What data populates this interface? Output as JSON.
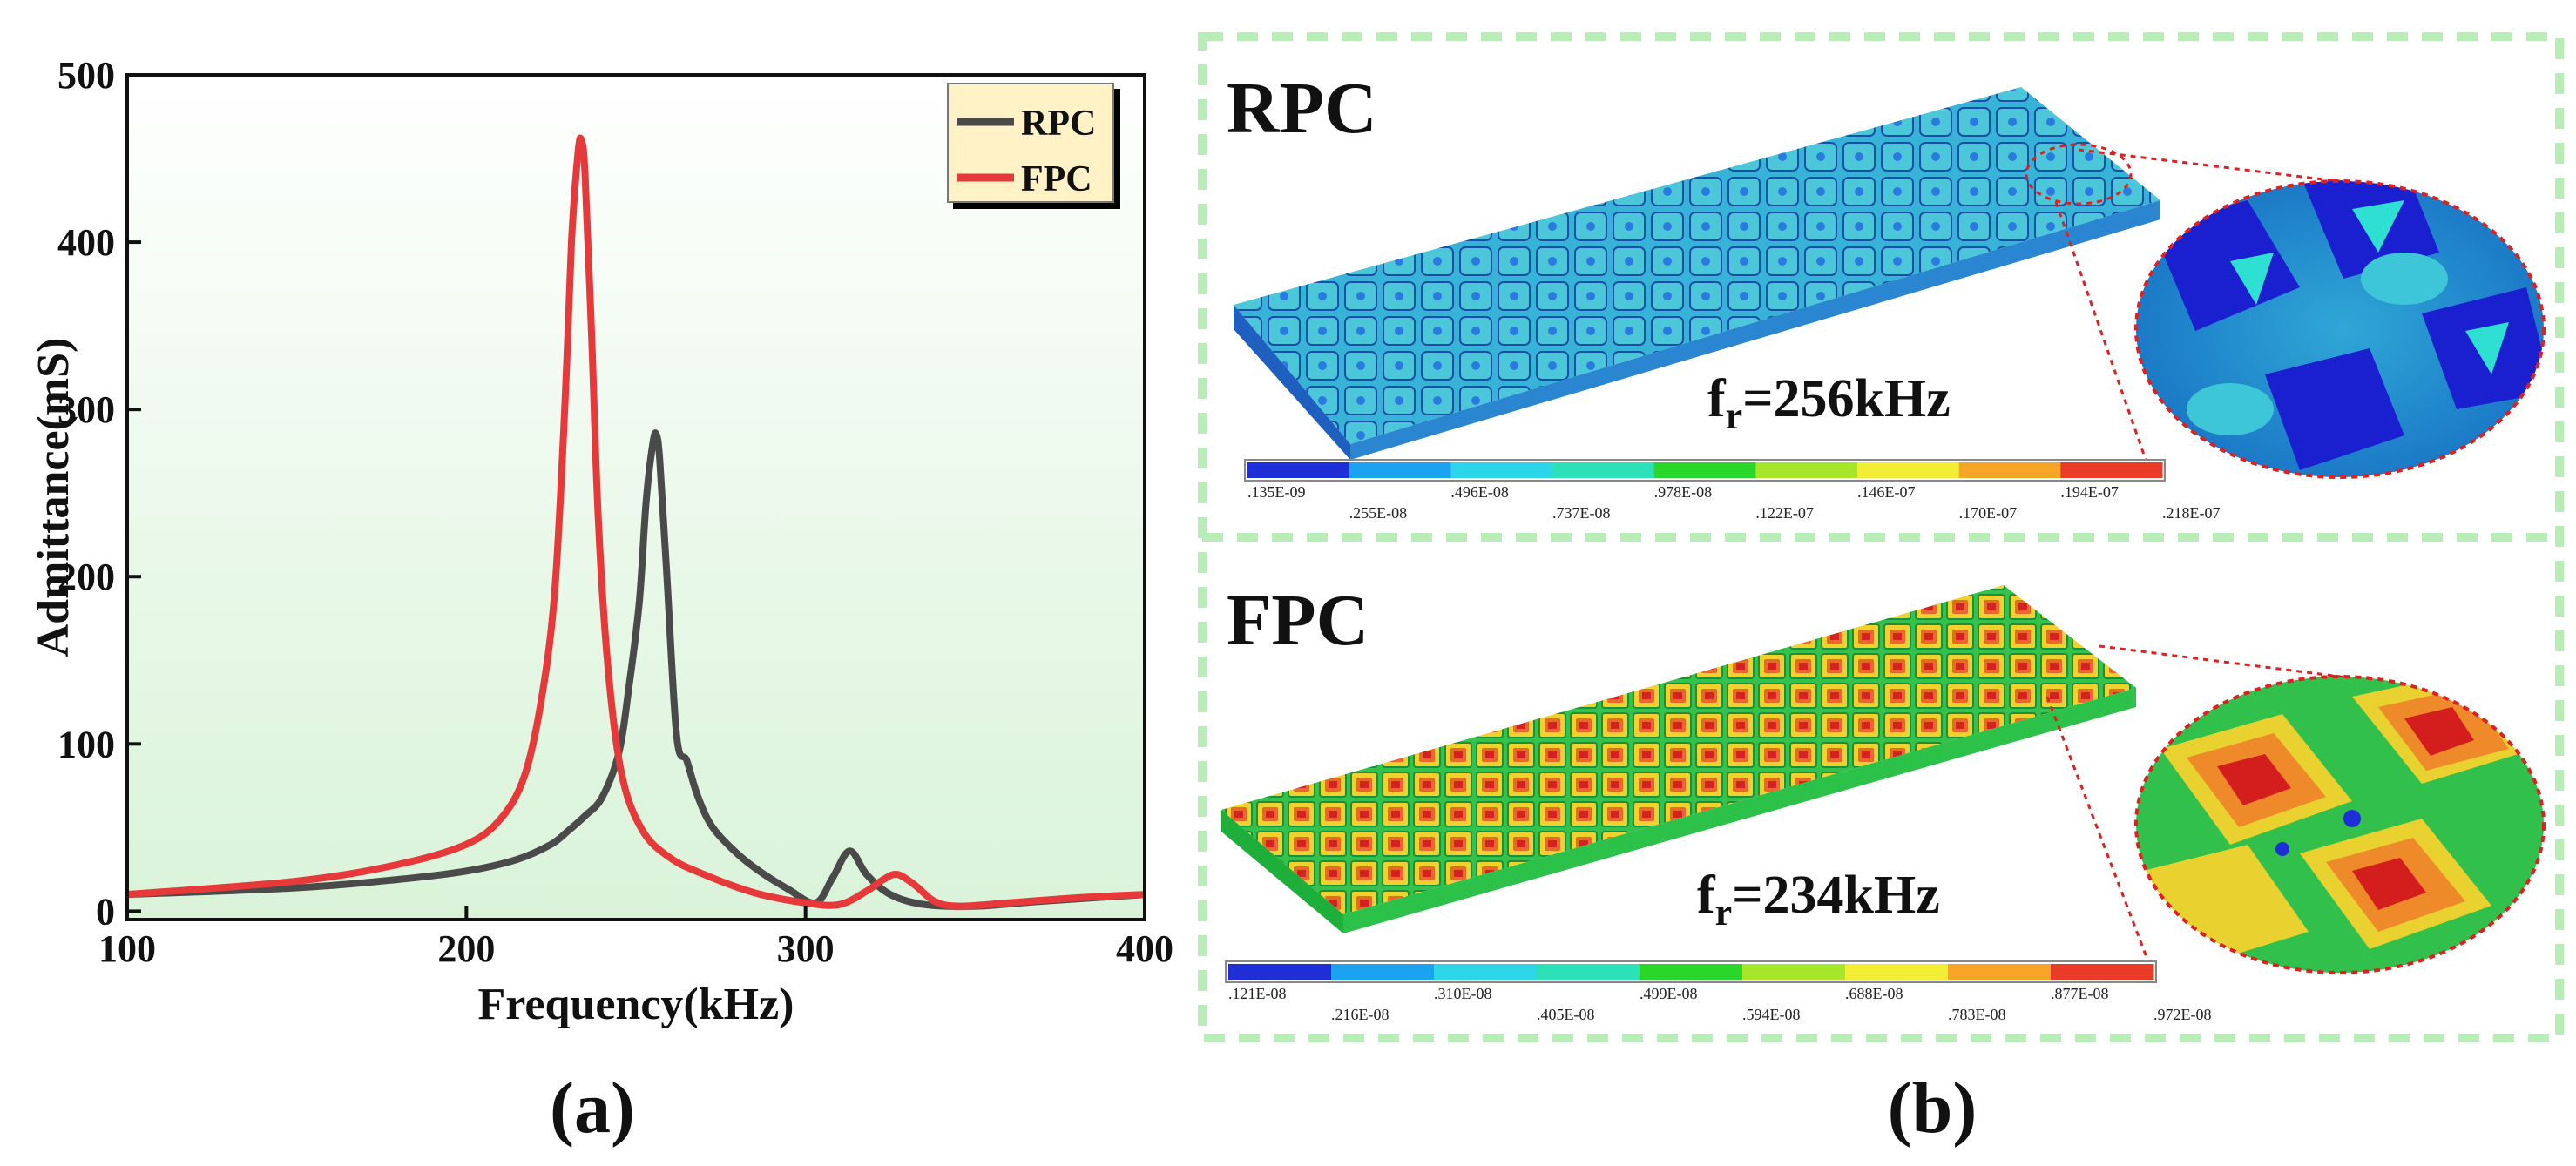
{
  "panel_a": {
    "label": "(a)",
    "chart_data": {
      "type": "line",
      "title": "",
      "xlabel": "Frequency(kHz)",
      "ylabel": "Admittance(mS)",
      "xlim": [
        100,
        400
      ],
      "ylim": [
        -5,
        500
      ],
      "xticks": [
        100,
        200,
        300,
        400
      ],
      "yticks": [
        0,
        100,
        200,
        300,
        400,
        500
      ],
      "legend_position": "top-right",
      "series": [
        {
          "name": "RPC",
          "color": "#4a4a4a",
          "x": [
            100,
            150,
            180,
            200,
            215,
            225,
            230,
            235,
            240,
            245,
            248,
            251,
            253,
            255,
            256,
            257,
            259,
            262,
            265,
            268,
            272,
            278,
            285,
            295,
            303,
            308,
            313,
            318,
            325,
            335,
            350,
            370,
            400
          ],
          "y": [
            10,
            14,
            19,
            24,
            31,
            40,
            48,
            57,
            68,
            95,
            135,
            185,
            245,
            280,
            285,
            270,
            205,
            105,
            90,
            70,
            52,
            38,
            26,
            13,
            5,
            20,
            36,
            22,
            10,
            4,
            3,
            6,
            10
          ]
        },
        {
          "name": "FPC",
          "color": "#e8393a",
          "x": [
            100,
            150,
            180,
            200,
            210,
            217,
            222,
            226,
            229,
            231,
            233,
            234,
            235,
            237,
            239,
            242,
            246,
            252,
            260,
            270,
            285,
            300,
            310,
            318,
            323,
            327,
            332,
            338,
            345,
            360,
            380,
            400
          ],
          "y": [
            10,
            18,
            28,
            40,
            55,
            80,
            125,
            190,
            300,
            400,
            455,
            460,
            440,
            340,
            230,
            140,
            80,
            48,
            32,
            22,
            11,
            5,
            4,
            12,
            19,
            22,
            16,
            6,
            3,
            5,
            8,
            10
          ]
        }
      ]
    }
  },
  "panel_b": {
    "label": "(b)",
    "rpc": {
      "title": "RPC",
      "freq_prefix": "f",
      "freq_sub": "r",
      "freq_value": "=256kHz",
      "scale_colors": [
        "#1f2fd8",
        "#1ba2f0",
        "#2cd6e8",
        "#2ce0b8",
        "#2bd62a",
        "#a6e62a",
        "#f2ee35",
        "#f6a526",
        "#ea3b28"
      ],
      "scale_labels": [
        ".135E-09",
        ".255E-08",
        ".496E-08",
        ".737E-08",
        ".978E-08",
        ".122E-07",
        ".146E-07",
        ".170E-07",
        ".194E-07",
        ".218E-07"
      ]
    },
    "fpc": {
      "title": "FPC",
      "freq_prefix": "f",
      "freq_sub": "r",
      "freq_value": "=234kHz",
      "scale_colors": [
        "#1f2fd8",
        "#1ba2f0",
        "#2cd6e8",
        "#2ce0b8",
        "#2bd62a",
        "#a6e62a",
        "#f2ee35",
        "#f6a526",
        "#ea3b28"
      ],
      "scale_labels": [
        ".121E-08",
        ".216E-08",
        ".310E-08",
        ".405E-08",
        ".499E-08",
        ".594E-08",
        ".688E-08",
        ".783E-08",
        ".877E-08",
        ".972E-08"
      ]
    }
  }
}
